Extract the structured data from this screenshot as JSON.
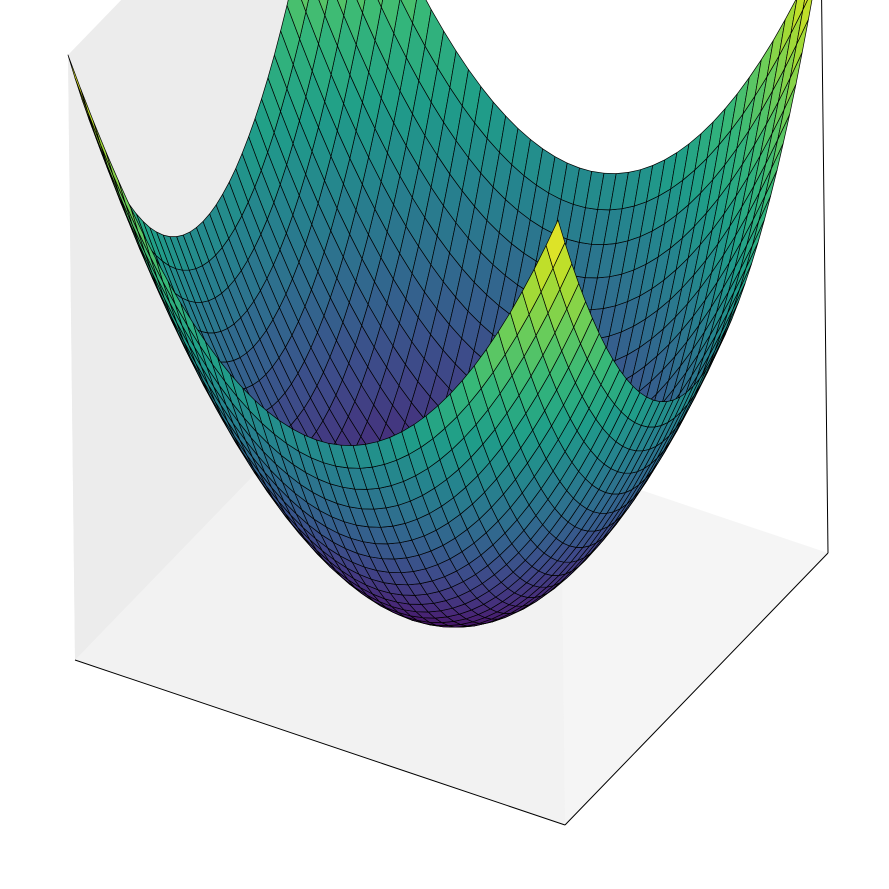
{
  "chart_data": {
    "type": "surface3d",
    "title": "",
    "xlabel": "",
    "ylabel": "",
    "zlabel": "",
    "function": "x^2 + y^2",
    "xlim": [
      -1,
      1
    ],
    "ylim": [
      -1,
      1
    ],
    "zlim": [
      0,
      2
    ],
    "grid_resolution": 40,
    "colormap": "viridis",
    "colormap_stops": [
      "#440154",
      "#482878",
      "#3e4989",
      "#31688e",
      "#26828e",
      "#1f9e89",
      "#35b779",
      "#6ece58",
      "#b5de2b",
      "#fde725"
    ],
    "edge_color": "#000000",
    "pane_colors": {
      "left": "#f2f2f2",
      "back": "#ececec",
      "floor": "#f5f5f5"
    },
    "axes_visible": true,
    "tick_labels_visible": false,
    "grid": false,
    "view": {
      "elevation_deg": 30,
      "azimuth_deg": -60
    }
  }
}
